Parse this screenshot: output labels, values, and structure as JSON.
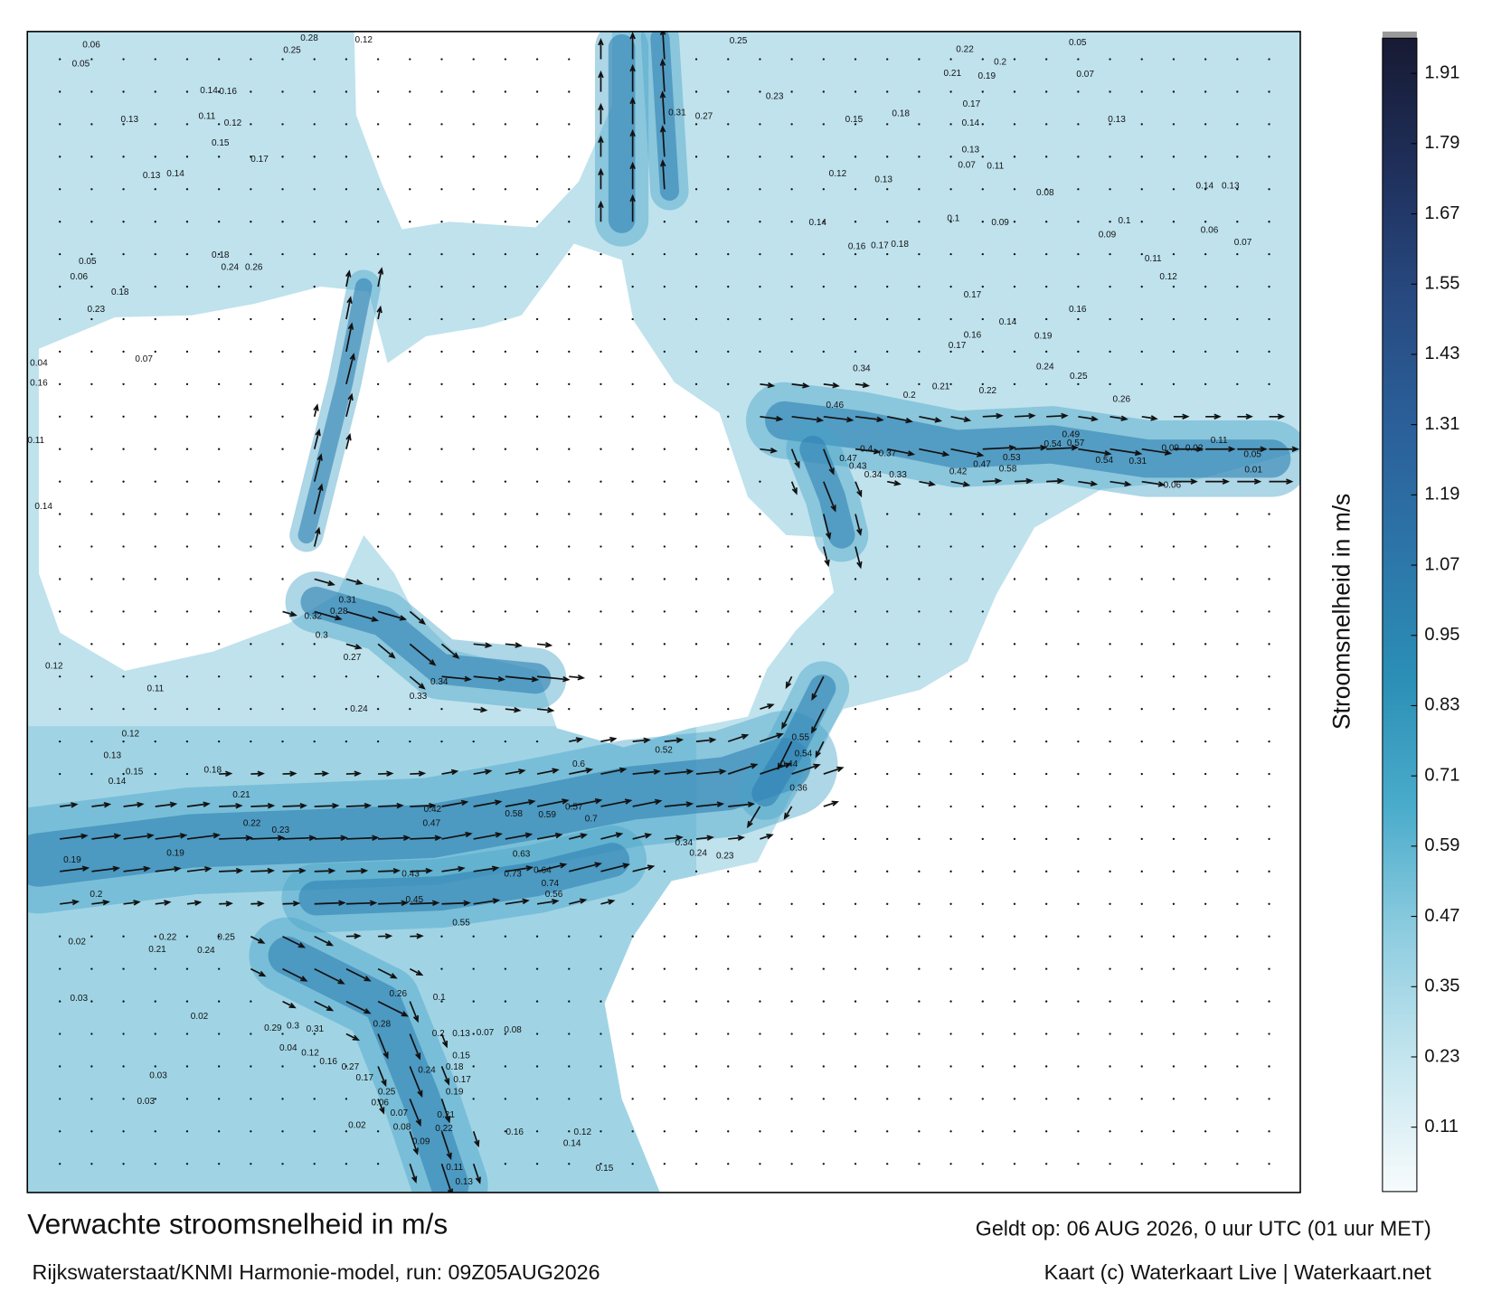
{
  "map": {
    "title": "Verwachte stroomsnelheid in m/s",
    "subtitle": "Rijkswaterstaat/KNMI Harmonie-model, run: 09Z05AUG2026",
    "valid_time": "Geldt op: 06 AUG 2026, 0 uur UTC (01 uur MET)",
    "credit": "Kaart (c) Waterkaart Live | Waterkaart.net",
    "labels": [
      0.06,
      0.05,
      0.25,
      0.28,
      0.12,
      0.13,
      0.14,
      0.16,
      0.11,
      0.12,
      0.15,
      0.17,
      0.13,
      0.14,
      0.18,
      0.24,
      0.26,
      0.05,
      0.06,
      0.18,
      0.23,
      0.04,
      0.16,
      0.07,
      0.11,
      0.14,
      0.12,
      0.11,
      0.12,
      0.13,
      0.15,
      0.14,
      0.18,
      0.21,
      0.22,
      0.23,
      0.19,
      0.19,
      0.2,
      0.22,
      0.25,
      0.24,
      0.21,
      0.02,
      0.03,
      0.02,
      0.03,
      0.03,
      0.02,
      0.24,
      0.33,
      0.34,
      0.3,
      0.27,
      0.28,
      0.31,
      0.32,
      0.58,
      0.59,
      0.57,
      0.7,
      0.63,
      0.64,
      0.73,
      0.74,
      0.56,
      0.47,
      0.42,
      0.43,
      0.45,
      0.55,
      0.6,
      0.52,
      0.55,
      0.54,
      0.44,
      0.36,
      0.34,
      0.24,
      0.23,
      0.46,
      0.47,
      0.43,
      0.34,
      0.33,
      0.37,
      0.4,
      0.42,
      0.47,
      0.53,
      0.58,
      0.54,
      0.57,
      0.49,
      0.54,
      0.31,
      0.26,
      0.25,
      0.24,
      0.19,
      0.14,
      0.16,
      0.17,
      0.2,
      0.21,
      0.22,
      0.34,
      0.25,
      0.22,
      0.21,
      0.19,
      0.2,
      0.05,
      0.07,
      0.23,
      0.31,
      0.27,
      0.15,
      0.18,
      0.13,
      0.14,
      0.17,
      0.13,
      0.11,
      0.07,
      0.08,
      0.12,
      0.13,
      0.14,
      0.16,
      0.17,
      0.18,
      0.1,
      0.09,
      0.17,
      0.16,
      0.12,
      0.11,
      0.1,
      0.09,
      0.06,
      0.07,
      0.14,
      0.13,
      0.11,
      0.02,
      0.09,
      0.06,
      0.01,
      0.05,
      0.26,
      0.1,
      0.28,
      0.2,
      0.13,
      0.07,
      0.08,
      0.15,
      0.18,
      0.17,
      0.24,
      0.19,
      0.21,
      0.22,
      0.16,
      0.12,
      0.14,
      0.15,
      0.11,
      0.13,
      0.09,
      0.08,
      0.25,
      0.06,
      0.07,
      0.17,
      0.27,
      0.16,
      0.12,
      0.04,
      0.31,
      0.3,
      0.29
    ]
  },
  "colorbar": {
    "label": "Stroomsnelheid in m/s",
    "lim": [
      0,
      1.97
    ],
    "ticks": [
      0.11,
      0.23,
      0.35,
      0.47,
      0.59,
      0.71,
      0.83,
      0.95,
      1.07,
      1.19,
      1.31,
      1.43,
      1.55,
      1.67,
      1.79,
      1.91
    ],
    "colors": [
      "#f7fbfc",
      "#c6e6ef",
      "#8fcde0",
      "#4aaccb",
      "#2b8fb6",
      "#2c75a8",
      "#2b5f99",
      "#27497f",
      "#1f2f5a",
      "#171a33"
    ]
  }
}
